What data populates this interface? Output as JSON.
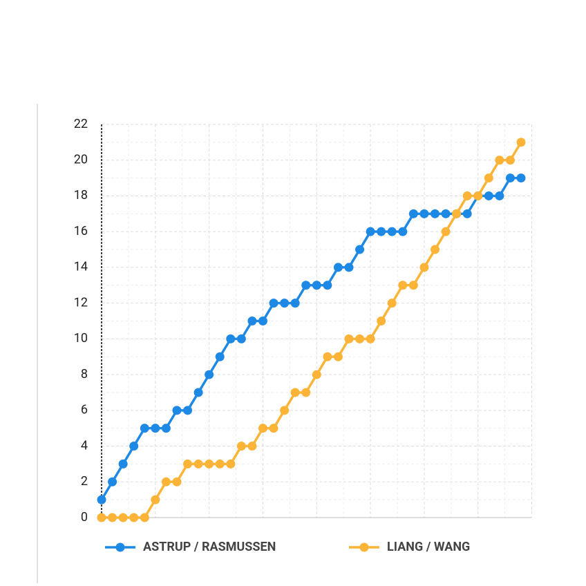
{
  "chart_data": {
    "type": "line",
    "categories": [
      null,
      null,
      null,
      null,
      null,
      null,
      null,
      null,
      null,
      null,
      null,
      null,
      null,
      null,
      null,
      null,
      null,
      null,
      null,
      null,
      null,
      null,
      null,
      null,
      null,
      null,
      null,
      null,
      null,
      null,
      null,
      null,
      null,
      null,
      null,
      null,
      null,
      null,
      null,
      null
    ],
    "series": [
      {
        "name": "ASTRUP / RASMUSSEN",
        "color": "#1e88e5",
        "values": [
          1,
          2,
          3,
          4,
          5,
          5,
          5,
          6,
          6,
          7,
          8,
          9,
          10,
          10,
          11,
          11,
          12,
          12,
          12,
          13,
          13,
          13,
          14,
          14,
          15,
          16,
          16,
          16,
          16,
          17,
          17,
          17,
          17,
          17,
          17,
          18,
          18,
          18,
          19,
          19
        ]
      },
      {
        "name": "LIANG / WANG",
        "color": "#fbb437",
        "values": [
          0,
          0,
          0,
          0,
          0,
          1,
          2,
          2,
          3,
          3,
          3,
          3,
          3,
          4,
          4,
          5,
          5,
          6,
          7,
          7,
          8,
          9,
          9,
          10,
          10,
          10,
          11,
          12,
          13,
          13,
          14,
          15,
          16,
          17,
          18,
          18,
          19,
          20,
          20,
          21
        ]
      }
    ],
    "ylim": [
      0,
      22
    ],
    "yticks": [
      0,
      2,
      4,
      6,
      8,
      10,
      12,
      14,
      16,
      18,
      20,
      22
    ],
    "grid": true,
    "legend": "bottom"
  }
}
